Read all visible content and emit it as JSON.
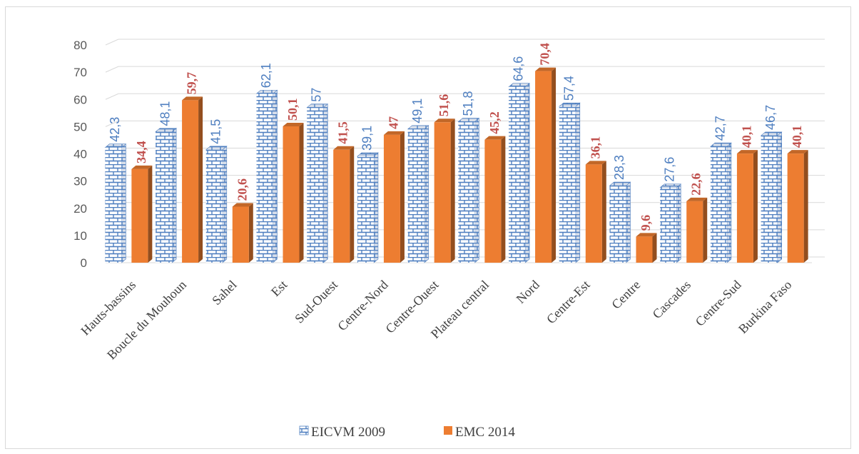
{
  "chart_data": {
    "type": "bar",
    "categories": [
      "Hauts-bassins",
      "Boucle du Mouhoun",
      "Sahel",
      "Est",
      "Sud-Ouest",
      "Centre-Nord",
      "Centre-Ouest",
      "Plateau central",
      "Nord",
      "Centre-Est",
      "Centre",
      "Cascades",
      "Centre-Sud",
      "Burkina Faso"
    ],
    "series": [
      {
        "name": "EICVM 2009",
        "values": [
          42.3,
          48.1,
          41.5,
          62.1,
          57,
          39.1,
          49.1,
          51.8,
          64.6,
          57.4,
          28.3,
          27.6,
          42.7,
          46.7
        ],
        "labels": [
          "42,3",
          "48,1",
          "41,5",
          "62,1",
          "57",
          "39,1",
          "49,1",
          "51,8",
          "64,6",
          "57,4",
          "28,3",
          "27,6",
          "42,7",
          "46,7"
        ],
        "color": "#4f7fc0",
        "pattern": "brick"
      },
      {
        "name": "EMC 2014",
        "values": [
          34.4,
          59.7,
          20.6,
          50.1,
          41.5,
          47,
          51.6,
          45.2,
          70.4,
          36.1,
          9.6,
          22.6,
          40.1,
          40.1
        ],
        "labels": [
          "34,4",
          "59,7",
          "20,6",
          "50,1",
          "41,5",
          "47",
          "51,6",
          "45,2",
          "70,4",
          "36,1",
          "9,6",
          "22,6",
          "40,1",
          "40,1"
        ],
        "color": "#ed7d31"
      }
    ],
    "yticks": [
      "0",
      "10",
      "20",
      "30",
      "40",
      "50",
      "60",
      "70",
      "80"
    ],
    "ylim": [
      0,
      80
    ],
    "grid": true,
    "legend_position": "bottom",
    "style": "3d-clustered-column",
    "title": "",
    "xlabel": "",
    "ylabel": ""
  }
}
